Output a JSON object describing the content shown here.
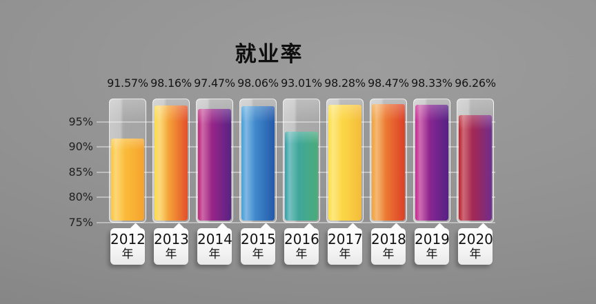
{
  "title": "就业率",
  "chart_data": {
    "type": "bar",
    "title": "就业率",
    "categories": [
      "2012年",
      "2013年",
      "2014年",
      "2015年",
      "2016年",
      "2017年",
      "2018年",
      "2019年",
      "2020年"
    ],
    "values": [
      91.57,
      98.16,
      97.47,
      98.06,
      93.01,
      98.28,
      98.47,
      98.33,
      96.26
    ],
    "value_labels": [
      "91.57%",
      "98.16%",
      "97.47%",
      "98.06%",
      "93.01%",
      "98.28%",
      "98.47%",
      "98.33%",
      "96.26%"
    ],
    "xlabel": "",
    "ylabel": "",
    "ylim": [
      75,
      99.5
    ],
    "y_ticks": [
      {
        "label": "95%",
        "value": 95
      },
      {
        "label": "90%",
        "value": 90
      },
      {
        "label": "85%",
        "value": 85
      },
      {
        "label": "80%",
        "value": 80
      },
      {
        "label": "75%",
        "value": 75
      }
    ],
    "grid": true,
    "legend_position": "none"
  },
  "columns": [
    {
      "year": "2012",
      "year_suffix": "年",
      "value": 91.57,
      "value_label": "91.57%",
      "color_left": "#fcca41",
      "color_mid": "#f9b737",
      "color_right": "#f5a22d"
    },
    {
      "year": "2013",
      "year_suffix": "年",
      "value": 98.16,
      "value_label": "98.16%",
      "color_left": "#fcdf4b",
      "color_mid": "#f29134",
      "color_right": "#e2502c"
    },
    {
      "year": "2014",
      "year_suffix": "年",
      "value": 97.47,
      "value_label": "97.47%",
      "color_left": "#c52a80",
      "color_mid": "#8a2488",
      "color_right": "#572384"
    },
    {
      "year": "2015",
      "year_suffix": "年",
      "value": 98.06,
      "value_label": "98.06%",
      "color_left": "#4da3dd",
      "color_mid": "#3a7fc4",
      "color_right": "#2459a9"
    },
    {
      "year": "2016",
      "year_suffix": "年",
      "value": 93.01,
      "value_label": "93.01%",
      "color_left": "#39a4ab",
      "color_mid": "#42a893",
      "color_right": "#4cab7a"
    },
    {
      "year": "2017",
      "year_suffix": "年",
      "value": 98.28,
      "value_label": "98.28%",
      "color_left": "#fde14c",
      "color_mid": "#fbd244",
      "color_right": "#f3bb3c"
    },
    {
      "year": "2018",
      "year_suffix": "年",
      "value": 98.47,
      "value_label": "98.47%",
      "color_left": "#f3a83d",
      "color_mid": "#e96c30",
      "color_right": "#dc4028"
    },
    {
      "year": "2019",
      "year_suffix": "年",
      "value": 98.33,
      "value_label": "98.33%",
      "color_left": "#cb2e90",
      "color_mid": "#7c2590",
      "color_right": "#552182"
    },
    {
      "year": "2020",
      "year_suffix": "年",
      "value": 96.26,
      "value_label": "96.26%",
      "color_left": "#c22831",
      "color_mid": "#99295e",
      "color_right": "#702d8e"
    }
  ],
  "style_colors": {
    "background_center": "#9d9d9d",
    "background_edge": "#858585",
    "gridline": "rgba(255,255,255,0.40)",
    "text": "#141414",
    "label_box": "#ffffff"
  }
}
